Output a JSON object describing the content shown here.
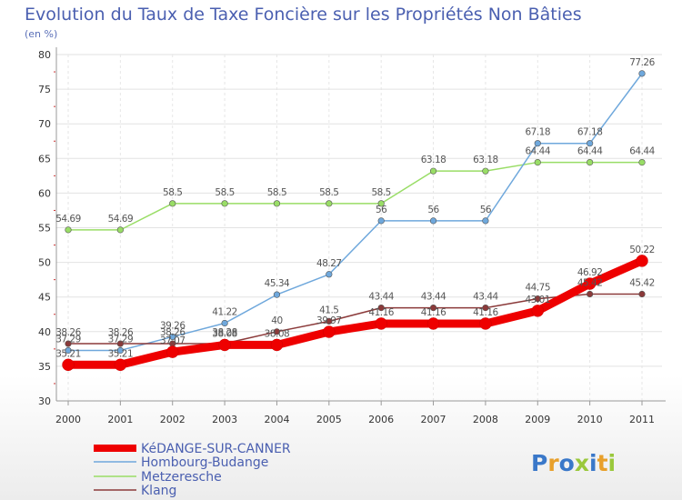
{
  "chart_data": {
    "type": "line",
    "title": "Evolution du Taux de Taxe Foncière sur les Propriétés Non Bâties",
    "subtitle": "(en %)",
    "categories": [
      "2000",
      "2001",
      "2002",
      "2003",
      "2004",
      "2005",
      "2006",
      "2007",
      "2008",
      "2009",
      "2010",
      "2011"
    ],
    "ylim": [
      30,
      80
    ],
    "yticks": [
      30,
      35,
      40,
      45,
      50,
      55,
      60,
      65,
      70,
      75,
      80
    ],
    "grid": true,
    "legend_position": "bottom-left",
    "series": [
      {
        "name": "KéDANGE-SUR-CANNER",
        "color": "#ee0000",
        "values": [
          35.21,
          35.21,
          37.07,
          38.08,
          38.08,
          39.97,
          41.16,
          41.16,
          41.16,
          43.01,
          46.92,
          50.22
        ],
        "labels": [
          "35.21",
          "35.21",
          "37.07",
          "38.08",
          "38.08",
          "39.97",
          "41.16",
          "41.16",
          "41.16",
          "43.01",
          "46.92",
          "50.22"
        ]
      },
      {
        "name": "Hombourg-Budange",
        "color": "#6fa8dc",
        "values": [
          37.29,
          37.29,
          39.26,
          41.22,
          45.34,
          48.27,
          56,
          56,
          56,
          67.18,
          67.18,
          77.26
        ],
        "labels": [
          "37.29",
          "37.29",
          "39.26",
          "41.22",
          "45.34",
          "48.27",
          "56",
          "56",
          "56",
          "67.18",
          "67.18",
          "77.26"
        ]
      },
      {
        "name": "Metzeresche",
        "color": "#99dd66",
        "values": [
          54.69,
          54.69,
          58.5,
          58.5,
          58.5,
          58.5,
          58.5,
          63.18,
          63.18,
          64.44,
          64.44,
          64.44
        ],
        "labels": [
          "54.69",
          "54.69",
          "58.5",
          "58.5",
          "58.5",
          "58.5",
          "58.5",
          "63.18",
          "63.18",
          "64.44",
          "64.44",
          "64.44"
        ]
      },
      {
        "name": "Klang",
        "color": "#8b3a3a",
        "values": [
          38.26,
          38.26,
          38.26,
          38.28,
          40,
          41.5,
          43.44,
          43.44,
          43.44,
          44.75,
          45.42,
          45.42
        ],
        "labels": [
          "38.26",
          "38.26",
          "38.26",
          "38.28",
          "40",
          "41.5",
          "43.44",
          "43.44",
          "43.44",
          "44.75",
          "45.42",
          "45.42"
        ]
      }
    ]
  },
  "logo": {
    "text": "Proxiti",
    "letters": [
      {
        "ch": "P",
        "color": "#3a78c9"
      },
      {
        "ch": "r",
        "color": "#e8a02b"
      },
      {
        "ch": "o",
        "color": "#3a78c9"
      },
      {
        "ch": "x",
        "color": "#9ac83c"
      },
      {
        "ch": "i",
        "color": "#3a78c9"
      },
      {
        "ch": "t",
        "color": "#e8a02b"
      },
      {
        "ch": "i",
        "color": "#9ac83c"
      }
    ]
  }
}
